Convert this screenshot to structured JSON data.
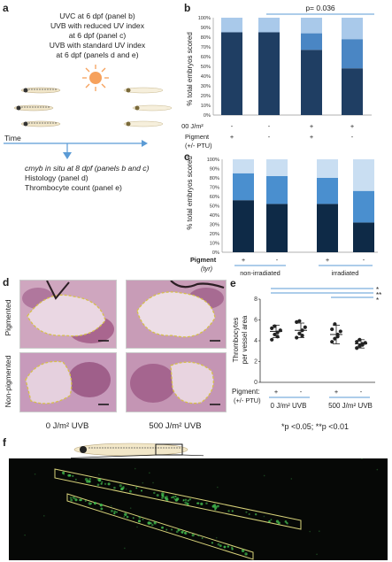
{
  "panel_a": {
    "label": "a",
    "lines": [
      "UVC at 6 dpf (panel b)",
      "UVB with reduced UV index",
      "at 6 dpf (panel c)",
      "UVB with standard UV index",
      "at 6 dpf (panels d and e)"
    ],
    "time_label": "Time",
    "outcome_lines": [
      "cmyb in situ at 8 dpf (panels b and c)",
      "Histology (panel d)",
      "Thrombocyte count (panel e)"
    ],
    "colors": {
      "sun": "#f6a15c",
      "arrow": "#5b9bd5"
    }
  },
  "panel_b": {
    "label": "b",
    "pvalue": "p= 0.036",
    "ylabel": "% total embryos scored",
    "row_labels": [
      "400 J/m²",
      "Pigment",
      "(+/- PTU)"
    ],
    "row1": [
      "-",
      "-",
      "+",
      "+"
    ],
    "row2": [
      "+",
      "-",
      "+",
      "-"
    ]
  },
  "panel_c": {
    "label": "c",
    "ylabel": "% total embryos scored",
    "row_label": "Pigment",
    "row_label_sub": "(tyr)",
    "row": [
      "+",
      "-",
      "+",
      "-"
    ],
    "groups": [
      "non-irradiated",
      "irradiated"
    ]
  },
  "panel_d": {
    "label": "d",
    "row_labels": [
      "Pigmented",
      "Non-pigmented"
    ],
    "col_labels": [
      "0 J/m² UVB",
      "500 J/m² UVB"
    ]
  },
  "panel_e": {
    "label": "e",
    "ylabel_lines": [
      "Thrombocytes",
      "per vessel area"
    ],
    "sig": [
      "*",
      "**",
      "*"
    ],
    "pigment_label": "Pigment:",
    "pigment_sub": "(+/- PTU)",
    "pigment_row": [
      "+",
      "-",
      "+",
      "-"
    ],
    "groups": [
      "0 J/m² UVB",
      "500 J/m² UVB"
    ],
    "footnote": "*p <0.05; **p <0.01"
  },
  "panel_f": {
    "label": "f"
  },
  "chart_data": [
    {
      "panel": "b",
      "type": "bar",
      "stacked": true,
      "categories": [
        "1",
        "2",
        "3",
        "4"
      ],
      "ylim": [
        0,
        100
      ],
      "yticks": [
        "0%",
        "10%",
        "20%",
        "30%",
        "40%",
        "50%",
        "60%",
        "70%",
        "80%",
        "90%",
        "100%"
      ],
      "series": [
        {
          "color": "#1f3e63",
          "values": [
            85,
            85,
            67,
            48
          ]
        },
        {
          "color": "#4a86c4",
          "values": [
            0,
            0,
            17,
            30
          ]
        },
        {
          "color": "#a9c9ea",
          "values": [
            15,
            15,
            16,
            22
          ]
        }
      ]
    },
    {
      "panel": "c",
      "type": "bar",
      "stacked": true,
      "categories": [
        "1",
        "2",
        "3",
        "4"
      ],
      "ylim": [
        0,
        100
      ],
      "yticks": [
        "0%",
        "10%",
        "20%",
        "30%",
        "40%",
        "50%",
        "60%",
        "70%",
        "80%",
        "90%",
        "100%"
      ],
      "series": [
        {
          "color": "#0e2a47",
          "values": [
            56,
            52,
            52,
            32
          ]
        },
        {
          "color": "#4a8fcf",
          "values": [
            29,
            30,
            28,
            34
          ]
        },
        {
          "color": "#c9def2",
          "values": [
            15,
            18,
            20,
            34
          ]
        }
      ]
    },
    {
      "panel": "e",
      "type": "scatter",
      "categories": [
        "1",
        "2",
        "3",
        "4"
      ],
      "ylim": [
        0,
        8
      ],
      "yticks": [
        "0",
        "2",
        "4",
        "6",
        "8"
      ],
      "means": [
        4.9,
        5.0,
        4.6,
        3.7
      ],
      "sd": [
        0.6,
        0.7,
        0.9,
        0.4
      ],
      "points": [
        [
          4.1,
          4.6,
          4.8,
          5.0,
          5.2,
          5.4,
          4.4
        ],
        [
          4.3,
          4.7,
          5.0,
          5.3,
          5.8,
          5.9,
          4.5
        ],
        [
          3.9,
          4.2,
          4.6,
          4.9,
          5.1,
          5.6,
          4.4
        ],
        [
          3.3,
          3.5,
          3.7,
          3.8,
          3.9,
          4.1,
          3.6
        ]
      ]
    }
  ]
}
